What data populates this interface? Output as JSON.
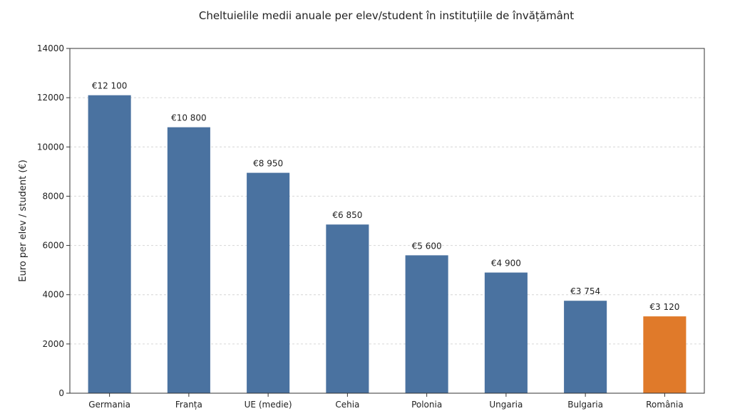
{
  "chart_data": {
    "type": "bar",
    "title": "Cheltuielile medii anuale per elev/student în instituțiile de învățământ",
    "xlabel": "",
    "ylabel": "Euro per elev / student (€)",
    "ylim": [
      0,
      14000
    ],
    "yticks": [
      0,
      2000,
      4000,
      6000,
      8000,
      10000,
      12000,
      14000
    ],
    "ytick_labels": [
      "0",
      "2000",
      "4000",
      "6000",
      "8000",
      "10000",
      "12000",
      "14000"
    ],
    "grid": true,
    "categories": [
      "Germania",
      "Franța",
      "UE (medie)",
      "Cehia",
      "Polonia",
      "Ungaria",
      "Bulgaria",
      "România"
    ],
    "values": [
      12100,
      10800,
      8950,
      6850,
      5600,
      4900,
      3754,
      3120
    ],
    "value_labels": [
      "€12 100",
      "€10 800",
      "€8 950",
      "€6 850",
      "€5 600",
      "€4 900",
      "€3 754",
      "€3 120"
    ],
    "colors": [
      "#4a72a0",
      "#4a72a0",
      "#4a72a0",
      "#4a72a0",
      "#4a72a0",
      "#4a72a0",
      "#4a72a0",
      "#e07a2a"
    ]
  }
}
